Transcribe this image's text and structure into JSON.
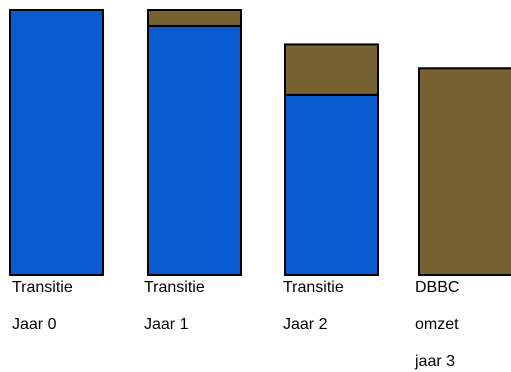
{
  "chart_data": {
    "type": "bar",
    "stacked": true,
    "categories": [
      [
        "Transitie",
        "Jaar 0"
      ],
      [
        "Transitie",
        "Jaar 1"
      ],
      [
        "Transitie",
        "Jaar 2"
      ],
      [
        "DBBC",
        "omzet",
        "jaar 3"
      ]
    ],
    "series": [
      {
        "values": [
          100,
          94,
          68,
          0
        ],
        "color": "#0a5ad2"
      },
      {
        "values": [
          0,
          6,
          19,
          78
        ],
        "color": "#786232"
      }
    ],
    "ylim": [
      0,
      100
    ],
    "grid": false,
    "legend": "none"
  }
}
